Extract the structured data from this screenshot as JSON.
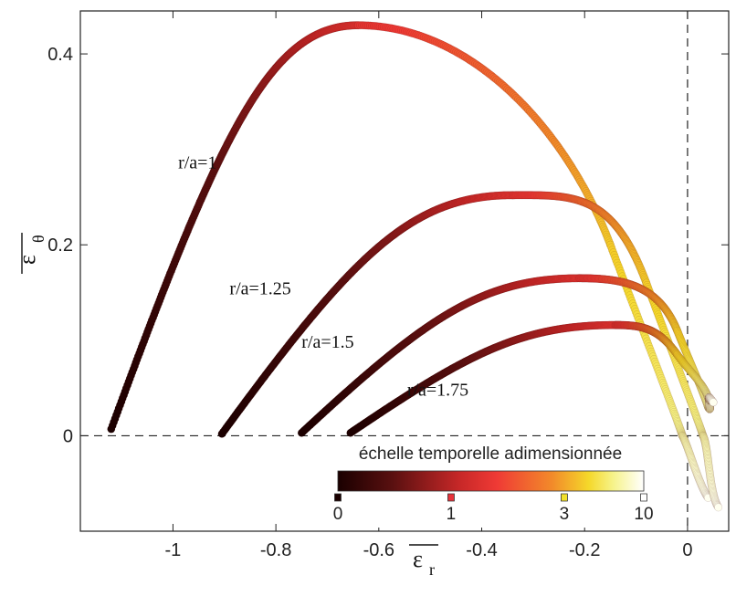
{
  "chart_data": {
    "type": "scatter",
    "xlabel": "ε",
    "xlabel_sub": "r",
    "ylabel": "ε",
    "ylabel_sub": "θ",
    "xlim": [
      -1.18,
      0.08
    ],
    "ylim": [
      -0.1,
      0.445
    ],
    "x_ticks": [
      {
        "v": -1,
        "label": "-1"
      },
      {
        "v": -0.8,
        "label": "-0.8"
      },
      {
        "v": -0.6,
        "label": "-0.6"
      },
      {
        "v": -0.4,
        "label": "-0.4"
      },
      {
        "v": -0.2,
        "label": "-0.2"
      },
      {
        "v": 0,
        "label": "0"
      }
    ],
    "y_ticks": [
      {
        "v": 0,
        "label": "0"
      },
      {
        "v": 0.2,
        "label": "0.2"
      },
      {
        "v": 0.4,
        "label": "0.4"
      }
    ],
    "reference_lines": {
      "x": 0,
      "y": 0,
      "style": "dashed"
    },
    "series": [
      {
        "name": "r/a=1",
        "start": [
          -1.12,
          0.007
        ],
        "peak": [
          -0.64,
          0.43
        ],
        "through": [
          -0.15,
          0.2
        ],
        "cross_zero": [
          -0.01,
          0.0
        ],
        "end": [
          0.04,
          -0.065
        ],
        "label_at": [
          -0.99,
          0.28
        ]
      },
      {
        "name": "r/a=1.25",
        "start": [
          -0.905,
          0.002
        ],
        "peak": [
          -0.34,
          0.252
        ],
        "through": [
          -0.08,
          0.16
        ],
        "cross_zero": [
          0.03,
          0.0
        ],
        "end": [
          0.06,
          -0.075
        ],
        "label_at": [
          -0.89,
          0.148
        ]
      },
      {
        "name": "r/a=1.5",
        "start": [
          -0.75,
          0.003
        ],
        "peak": [
          -0.21,
          0.165
        ],
        "through": [
          -0.02,
          0.11
        ],
        "cross_zero": [
          0.04,
          0.03
        ],
        "end": [
          0.05,
          0.035
        ],
        "label_at": [
          -0.75,
          0.092
        ]
      },
      {
        "name": "r/a=1.75",
        "start": [
          -0.655,
          0.003
        ],
        "peak": [
          -0.14,
          0.116
        ],
        "through": [
          -0.02,
          0.085
        ],
        "cross_zero": [
          0.04,
          0.04
        ],
        "end": [
          0.05,
          0.035
        ],
        "label_at": [
          -0.545,
          0.042
        ]
      }
    ],
    "colorbar": {
      "title": "échelle temporelle adimensionnée",
      "scale": "log",
      "ticks": [
        {
          "v": 0,
          "label": "0",
          "color": "#1a0000"
        },
        {
          "v": 1,
          "label": "1",
          "color": "#e8323a"
        },
        {
          "v": 3,
          "label": "3",
          "color": "#f2e02a"
        },
        {
          "v": 10,
          "label": "10",
          "color": "#ffffff"
        }
      ]
    }
  }
}
